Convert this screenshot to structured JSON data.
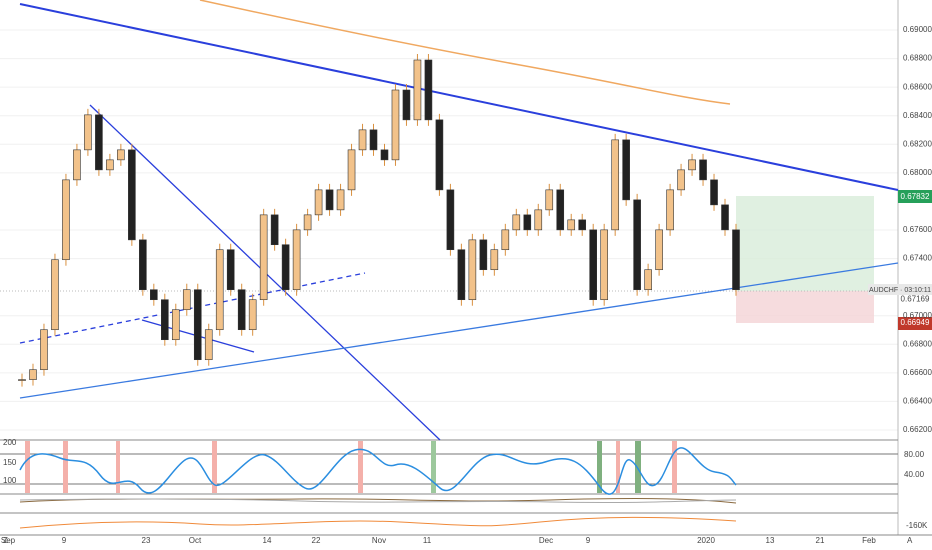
{
  "chart_data": {
    "type": "candlestick",
    "values": [
      0.66553,
      0.66622,
      0.66902,
      0.67392,
      0.67951,
      0.68161,
      0.68406,
      0.68021,
      0.68091,
      0.68161,
      0.67531,
      0.67182,
      0.67112,
      0.66832,
      0.67042,
      0.67182,
      0.66692,
      0.66902,
      0.67462,
      0.67182,
      0.66902,
      0.67112,
      0.67706,
      0.67497,
      0.67182,
      0.67601,
      0.67706,
      0.67881,
      0.67741,
      0.67881,
      0.68161,
      0.68301,
      0.68161,
      0.68091,
      0.6858,
      0.68371,
      0.6879,
      0.68371,
      0.67881,
      0.67462,
      0.67112,
      0.67531,
      0.67322,
      0.67462,
      0.67601,
      0.67706,
      0.67601,
      0.67741,
      0.67881,
      0.67601,
      0.67671,
      0.67601,
      0.67112,
      0.67601,
      0.68231,
      0.67811,
      0.67182,
      0.67322,
      0.67601,
      0.67881,
      0.68021,
      0.68091,
      0.67951,
      0.67776,
      0.67601,
      0.67182
    ],
    "ylim": [
      0.6613,
      0.6921
    ],
    "yticks": [
      {
        "value": 0.69,
        "label": "0.69000"
      },
      {
        "value": 0.688,
        "label": "0.68800"
      },
      {
        "value": 0.686,
        "label": "0.68600"
      },
      {
        "value": 0.684,
        "label": "0.68400"
      },
      {
        "value": 0.682,
        "label": "0.68200"
      },
      {
        "value": 0.68,
        "label": "0.68000"
      },
      {
        "value": 0.676,
        "label": "0.67600"
      },
      {
        "value": 0.674,
        "label": "0.67400"
      },
      {
        "value": 0.67,
        "label": "0.67000"
      },
      {
        "value": 0.668,
        "label": "0.66800"
      },
      {
        "value": 0.666,
        "label": "0.66600"
      },
      {
        "value": 0.664,
        "label": "0.66400"
      },
      {
        "value": 0.662,
        "label": "0.66200"
      }
    ],
    "date_labels": [
      "Sep",
      "9",
      "23",
      "Oct",
      "14",
      "22",
      "Nov",
      "11",
      "Dec",
      "9",
      "2020",
      "13",
      "21",
      "Feb"
    ],
    "target_price": 0.67832,
    "symbol_label": "AUDCHF · 03:10:11",
    "last_price": 0.67169,
    "stop_price": 0.66949,
    "osc_left_ticks": [
      200,
      150,
      100
    ],
    "osc_right_ticks": [
      {
        "value": 80,
        "label": "80.00"
      },
      {
        "value": 40,
        "label": "40.00"
      }
    ],
    "volume_tick": {
      "value": -160000,
      "label": "-160K"
    },
    "corner_left": "Z",
    "corner_right": "A"
  }
}
